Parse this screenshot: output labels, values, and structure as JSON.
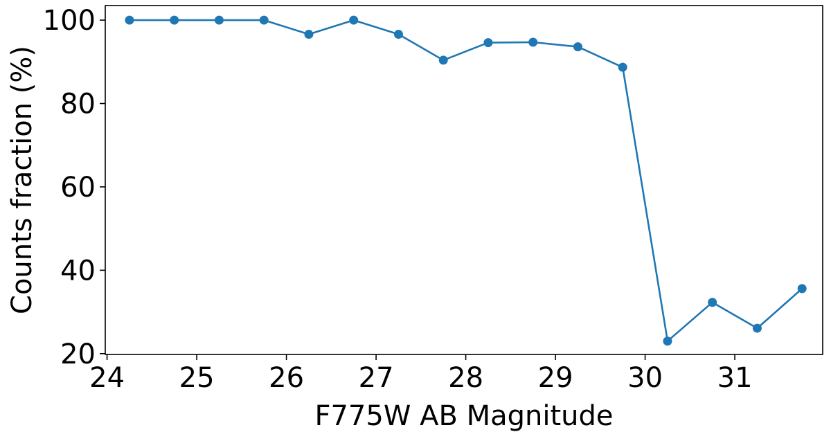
{
  "chart_data": {
    "type": "line",
    "title": "",
    "xlabel": "F775W AB Magnitude",
    "ylabel": "Counts fraction (%)",
    "xlim": [
      23.98,
      31.98
    ],
    "ylim": [
      19.8,
      103.5
    ],
    "xticks": [
      24,
      25,
      26,
      27,
      28,
      29,
      30,
      31
    ],
    "yticks": [
      20,
      40,
      60,
      80,
      100
    ],
    "grid": false,
    "legend": "none",
    "series": [
      {
        "color": "#1f77b4",
        "marker": "circle",
        "x": [
          24.25,
          24.75,
          25.25,
          25.75,
          26.25,
          26.75,
          27.25,
          27.75,
          28.25,
          28.75,
          29.25,
          29.75,
          30.25,
          30.75,
          31.25,
          31.75
        ],
        "y": [
          100,
          100,
          100,
          100,
          96.6,
          100,
          96.6,
          90.4,
          94.6,
          94.7,
          93.6,
          88.7,
          23.0,
          32.3,
          26.1,
          35.6
        ]
      }
    ]
  }
}
